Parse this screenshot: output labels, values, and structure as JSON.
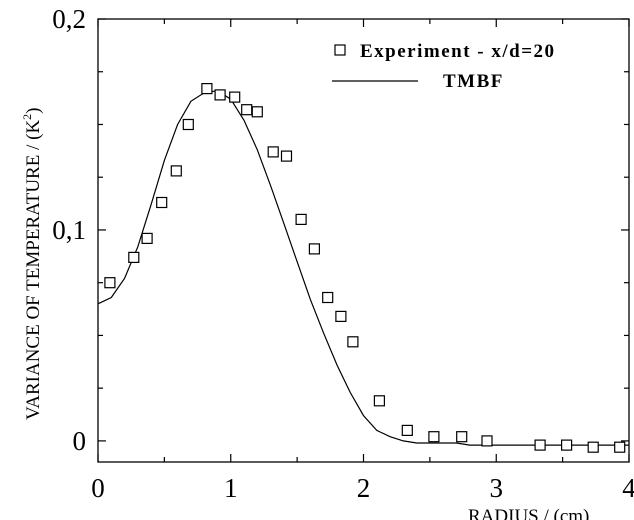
{
  "chart_data": {
    "type": "scatter",
    "xlabel": "RADIUS / (cm)",
    "ylabel_main": "VARIANCE OF TEMPERATURE / (K",
    "ylabel_sup": "2",
    "ylabel_close": ")",
    "xlim": [
      0,
      4
    ],
    "ylim": [
      -0.01,
      0.2
    ],
    "x_ticks": [
      0,
      1,
      2,
      3,
      4
    ],
    "x_tick_labels": [
      "0",
      "1",
      "2",
      "3",
      "4"
    ],
    "y_ticks": [
      0,
      0.1,
      0.2
    ],
    "y_tick_labels": [
      "0",
      "0,1",
      "0,2"
    ],
    "grid": false,
    "legend_position": "top-right",
    "series": [
      {
        "name": "Experiment - x/d=20",
        "kind": "markers",
        "marker": "open-square",
        "x": [
          0.09,
          0.27,
          0.37,
          0.48,
          0.59,
          0.68,
          0.82,
          0.92,
          1.03,
          1.12,
          1.2,
          1.32,
          1.42,
          1.53,
          1.63,
          1.73,
          1.83,
          1.92,
          2.12,
          2.33,
          2.53,
          2.74,
          2.93,
          3.33,
          3.53,
          3.73,
          3.93
        ],
        "y": [
          0.075,
          0.087,
          0.096,
          0.113,
          0.128,
          0.15,
          0.167,
          0.164,
          0.163,
          0.157,
          0.156,
          0.137,
          0.135,
          0.105,
          0.091,
          0.068,
          0.059,
          0.047,
          0.019,
          0.005,
          0.002,
          0.002,
          0.0,
          -0.002,
          -0.002,
          -0.003,
          -0.003
        ]
      },
      {
        "name": "TMBF",
        "kind": "line",
        "x": [
          0.0,
          0.1,
          0.2,
          0.3,
          0.4,
          0.5,
          0.6,
          0.7,
          0.8,
          0.9,
          1.0,
          1.1,
          1.2,
          1.3,
          1.4,
          1.5,
          1.6,
          1.7,
          1.8,
          1.9,
          2.0,
          2.1,
          2.2,
          2.3,
          2.4,
          2.5,
          2.6,
          2.7,
          2.8,
          2.9,
          3.0,
          3.2,
          3.4,
          3.6,
          3.8,
          4.0
        ],
        "y": [
          0.065,
          0.068,
          0.077,
          0.092,
          0.112,
          0.133,
          0.15,
          0.161,
          0.165,
          0.166,
          0.162,
          0.152,
          0.138,
          0.121,
          0.103,
          0.085,
          0.067,
          0.051,
          0.036,
          0.023,
          0.012,
          0.005,
          0.002,
          0.0,
          -0.001,
          -0.001,
          -0.001,
          -0.001,
          -0.002,
          -0.002,
          -0.002,
          -0.002,
          -0.002,
          -0.002,
          -0.002,
          -0.002
        ]
      }
    ]
  }
}
